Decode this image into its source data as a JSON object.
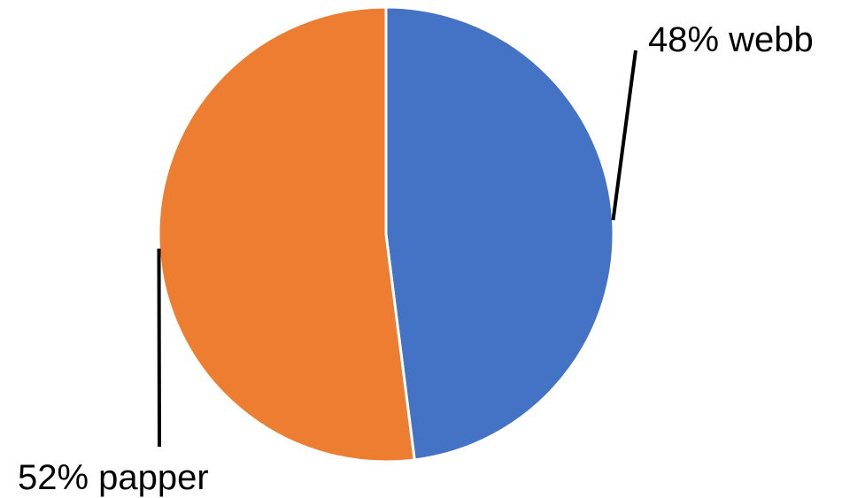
{
  "chart_data": {
    "type": "pie",
    "start_angle_deg": 0,
    "direction": "clockwise",
    "slices": [
      {
        "label": "webb",
        "value": 48,
        "data_label": "48% webb",
        "color": "#4472C4"
      },
      {
        "label": "papper",
        "value": 52,
        "data_label": "52% papper",
        "color": "#ED7D31"
      }
    ],
    "slice_border_color": "#ffffff",
    "leader_line_color": "#000000",
    "legend": "none"
  }
}
